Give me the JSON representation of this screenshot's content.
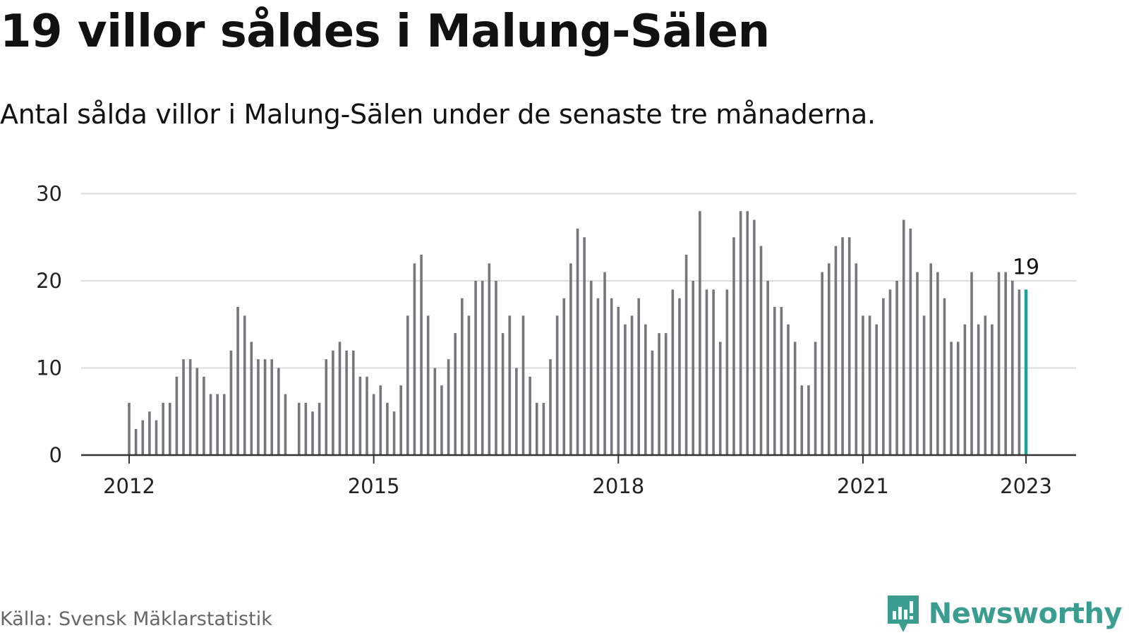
{
  "title": "19 villor såldes i Malung-Sälen",
  "subtitle": "Antal sålda villor i Malung-Sälen under de senaste tre månaderna.",
  "source": "Källa: Svensk Mäklarstatistik",
  "brand": {
    "name": "Newsworthy",
    "icon": "newsworthy-logo-icon"
  },
  "colors": {
    "bar": "#77767b",
    "highlight": "#1aa396",
    "grid": "#dddddd",
    "axis": "#333333",
    "brand": "#3a9d8f"
  },
  "chart_data": {
    "type": "bar",
    "x_ticks": [
      "2012",
      "2015",
      "2018",
      "2021",
      "2023"
    ],
    "y_ticks": [
      "0",
      "10",
      "20",
      "30"
    ],
    "ylim": [
      0,
      30
    ],
    "xlim": [
      "2011-06",
      "2023-07"
    ],
    "grid": true,
    "highlight_label": "19",
    "values": [
      6,
      3,
      4,
      5,
      4,
      6,
      6,
      9,
      11,
      11,
      10,
      9,
      7,
      7,
      7,
      12,
      17,
      16,
      13,
      11,
      11,
      11,
      10,
      7,
      null,
      6,
      6,
      5,
      6,
      11,
      12,
      13,
      12,
      12,
      9,
      9,
      7,
      8,
      6,
      5,
      8,
      16,
      22,
      23,
      16,
      10,
      8,
      11,
      14,
      18,
      16,
      20,
      20,
      22,
      20,
      14,
      16,
      10,
      16,
      9,
      6,
      6,
      11,
      16,
      18,
      22,
      26,
      25,
      20,
      18,
      21,
      18,
      17,
      15,
      16,
      18,
      15,
      12,
      14,
      14,
      19,
      18,
      23,
      20,
      28,
      19,
      19,
      13,
      19,
      25,
      28,
      28,
      27,
      24,
      20,
      17,
      17,
      15,
      13,
      8,
      8,
      13,
      21,
      22,
      24,
      25,
      25,
      22,
      16,
      16,
      15,
      18,
      19,
      20,
      27,
      26,
      21,
      16,
      22,
      21,
      18,
      13,
      13,
      15,
      21,
      15,
      16,
      15,
      21,
      21,
      20,
      19,
      19
    ],
    "start": "2012-01",
    "interval": "monthly",
    "series": [
      {
        "values_ref": "values"
      }
    ]
  }
}
